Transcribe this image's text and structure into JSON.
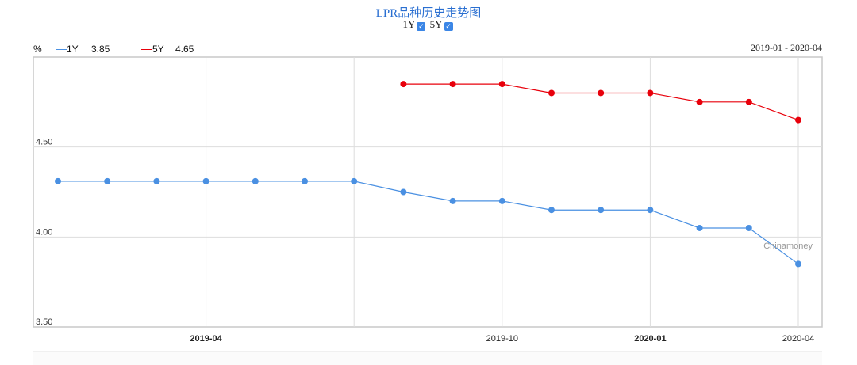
{
  "chart_data": {
    "type": "line",
    "title": "LPR品种历史走势图",
    "ylabel": "%",
    "date_range": "2019-01 - 2020-04",
    "x": [
      "2019-01",
      "2019-02",
      "2019-03",
      "2019-04",
      "2019-05",
      "2019-06",
      "2019-07",
      "2019-08",
      "2019-09",
      "2019-10",
      "2019-11",
      "2019-12",
      "2020-01",
      "2020-02",
      "2020-03",
      "2020-04"
    ],
    "series": [
      {
        "name": "1Y",
        "latest": "3.85",
        "color": "#4a90e2",
        "values": [
          4.31,
          4.31,
          4.31,
          4.31,
          4.31,
          4.31,
          4.31,
          4.25,
          4.2,
          4.2,
          4.15,
          4.15,
          4.15,
          4.05,
          4.05,
          3.85
        ]
      },
      {
        "name": "5Y",
        "latest": "4.65",
        "color": "#e8000b",
        "values": [
          null,
          null,
          null,
          null,
          null,
          null,
          null,
          4.85,
          4.85,
          4.85,
          4.8,
          4.8,
          4.8,
          4.75,
          4.75,
          4.65
        ]
      }
    ],
    "ylim": [
      3.5,
      5.0
    ],
    "yticks": [
      "3.50",
      "4.00",
      "4.50"
    ],
    "xticks": [
      {
        "date": "2019-04",
        "label": "2019-04",
        "bold": true
      },
      {
        "date": "2019-07",
        "label": "",
        "bold": false
      },
      {
        "date": "2019-10",
        "label": "2019-10",
        "bold": false
      },
      {
        "date": "2020-01",
        "label": "2020-01",
        "bold": true
      },
      {
        "date": "2020-04",
        "label": "2020-04",
        "bold": false
      }
    ],
    "grid": true,
    "watermark": "Chinamoney",
    "legend_placement": "top-left"
  },
  "toggles": [
    {
      "label": "1Y",
      "checked": true
    },
    {
      "label": "5Y",
      "checked": true
    }
  ]
}
